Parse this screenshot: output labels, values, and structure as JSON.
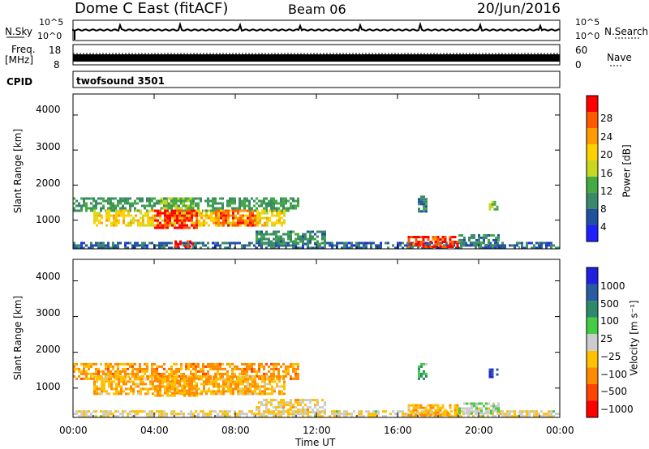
{
  "header": {
    "station": "Dome C East (fitACF)",
    "beam": "Beam 06",
    "date": "20/Jun/2016"
  },
  "noise_panel": {
    "left_label": "N.Sky",
    "right_label": "N.Search",
    "left_ticks": [
      "10^5",
      "10^0"
    ],
    "right_ticks": [
      "10^5",
      "10^0"
    ]
  },
  "freq_panel": {
    "left_label_1": "Freq.",
    "left_label_2": "[MHz]",
    "right_label": "Nave",
    "left_ticks": [
      "18",
      "8"
    ],
    "right_ticks": [
      "60",
      "0"
    ]
  },
  "cpid": {
    "label": "CPID",
    "program": "twofsound 3501"
  },
  "power_panel": {
    "ylabel": "Slant Range [km]",
    "yticks": [
      "4000",
      "3000",
      "2000",
      "1000"
    ],
    "colorbar_label": "Power [dB]",
    "colorbar_ticks": [
      "28",
      "24",
      "20",
      "16",
      "12",
      "8",
      "4"
    ]
  },
  "velocity_panel": {
    "ylabel": "Slant Range [km]",
    "yticks": [
      "4000",
      "3000",
      "2000",
      "1000"
    ],
    "colorbar_label": "Velocity [m s⁻¹]",
    "colorbar_ticks": [
      "1000",
      "500",
      "100",
      "25",
      "−25",
      "−100",
      "−500",
      "−1000"
    ]
  },
  "xaxis": {
    "label": "Time UT",
    "ticks": [
      "00:00",
      "04:00",
      "08:00",
      "12:00",
      "16:00",
      "20:00",
      "00:00"
    ]
  },
  "chart_data": [
    {
      "type": "heatmap",
      "title": "Power [dB]",
      "xlabel": "Time UT",
      "ylabel": "Slant Range [km]",
      "xlim": [
        "00:00",
        "24:00"
      ],
      "ylim": [
        180,
        4600
      ],
      "zlim": [
        0,
        30
      ],
      "colorscale": [
        "#2020ff",
        "#2050a0",
        "#3a8a6a",
        "#44aa44",
        "#c8d820",
        "#ffd000",
        "#ff9a00",
        "#ff5a00",
        "#ff0000"
      ],
      "regions": [
        {
          "t0": 0.0,
          "t1": 11.2,
          "r0": 1250,
          "r1": 1650,
          "z": 10
        },
        {
          "t0": 1.0,
          "t1": 10.5,
          "r0": 800,
          "r1": 1300,
          "z": 18
        },
        {
          "t0": 4.0,
          "t1": 6.2,
          "r0": 750,
          "r1": 1300,
          "z": 27
        },
        {
          "t0": 7.0,
          "t1": 9.0,
          "r0": 800,
          "r1": 1300,
          "z": 25
        },
        {
          "t0": 4.3,
          "t1": 6.0,
          "r0": 1300,
          "r1": 1650,
          "z": 14
        },
        {
          "t0": 0.0,
          "t1": 24.0,
          "r0": 180,
          "r1": 380,
          "z": 6
        },
        {
          "t0": 5.0,
          "t1": 6.0,
          "r0": 190,
          "r1": 420,
          "z": 28
        },
        {
          "t0": 9.0,
          "t1": 12.5,
          "r0": 300,
          "r1": 700,
          "z": 9
        },
        {
          "t0": 16.5,
          "t1": 19.0,
          "r0": 200,
          "r1": 550,
          "z": 26
        },
        {
          "t0": 19.0,
          "t1": 21.0,
          "r0": 250,
          "r1": 600,
          "z": 8
        },
        {
          "t0": 17.0,
          "t1": 17.5,
          "r0": 1200,
          "r1": 1700,
          "z": 8
        },
        {
          "t0": 20.5,
          "t1": 21.0,
          "r0": 1300,
          "r1": 1550,
          "z": 14
        }
      ]
    },
    {
      "type": "heatmap",
      "title": "Velocity [m s⁻¹]",
      "xlabel": "Time UT",
      "ylabel": "Slant Range [km]",
      "xlim": [
        "00:00",
        "24:00"
      ],
      "ylim": [
        180,
        4600
      ],
      "zlim": [
        -1000,
        1000
      ],
      "colorscale": [
        "#ff0000",
        "#ff4400",
        "#ff8a00",
        "#ffc000",
        "#cccccc",
        "#44cc44",
        "#2a8a6a",
        "#2a5aa0",
        "#2020e0"
      ],
      "regions": [
        {
          "t0": 0.0,
          "t1": 11.2,
          "r0": 1250,
          "r1": 1700,
          "z": -400
        },
        {
          "t0": 1.0,
          "t1": 10.5,
          "r0": 800,
          "r1": 1350,
          "z": -300
        },
        {
          "t0": 4.0,
          "t1": 6.2,
          "r0": 750,
          "r1": 1300,
          "z": -350
        },
        {
          "t0": 7.0,
          "t1": 9.0,
          "r0": 800,
          "r1": 1350,
          "z": -250
        },
        {
          "t0": 0.0,
          "t1": 24.0,
          "r0": 180,
          "r1": 380,
          "z": -80
        },
        {
          "t0": 9.0,
          "t1": 12.5,
          "r0": 300,
          "r1": 700,
          "z": -150
        },
        {
          "t0": 16.5,
          "t1": 19.0,
          "r0": 200,
          "r1": 550,
          "z": -300
        },
        {
          "t0": 19.0,
          "t1": 21.0,
          "r0": 250,
          "r1": 600,
          "z": 50
        },
        {
          "t0": 17.0,
          "t1": 17.5,
          "r0": 1200,
          "r1": 1700,
          "z": 300
        },
        {
          "t0": 20.5,
          "t1": 21.0,
          "r0": 1300,
          "r1": 1550,
          "z": 800
        }
      ]
    }
  ]
}
